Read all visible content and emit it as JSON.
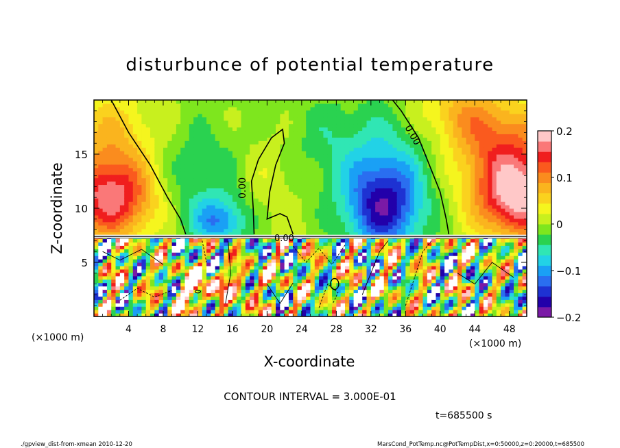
{
  "chart_data": {
    "type": "heatmap",
    "title": "disturbunce of potential temperature",
    "xlabel": "X-coordinate",
    "ylabel": "Z-coordinate",
    "x_unit": "(×1000 m)",
    "y_unit": "(×1000 m)",
    "xlim": [
      0,
      50
    ],
    "ylim": [
      0,
      20
    ],
    "x_ticks": [
      4,
      8,
      12,
      16,
      20,
      24,
      28,
      32,
      36,
      40,
      44,
      48
    ],
    "y_ticks": [
      5,
      10,
      15
    ],
    "colorbar": {
      "min": -0.2,
      "max": 0.2,
      "tick_values": [
        0.2,
        0.1,
        0,
        -0.1,
        -0.2
      ],
      "tick_labels": [
        "0.2",
        "0.1",
        "0",
        "−0.1",
        "−0.2"
      ],
      "colors": [
        "#7a1aa6",
        "#2200aa",
        "#1e32d2",
        "#2a6ef0",
        "#1aa0f5",
        "#22d2e6",
        "#30e6b4",
        "#2ad250",
        "#7ee61e",
        "#c8f01e",
        "#f5f51e",
        "#fad21e",
        "#fab41e",
        "#fa8c1e",
        "#fa5a1e",
        "#f01e1e",
        "#fa7878",
        "#ffc8c8"
      ]
    },
    "contour_label": "0.00",
    "contour_interval": "CONTOUR INTERVAL = 3.000E-01",
    "time_label": "t=685500 s"
  },
  "footer": {
    "left": "./gpview_dist-from-xmean  2010-12-20",
    "right": "MarsCond_PotTemp.nc@PotTempDist,x=0:50000,z=0:20000,t=685500"
  }
}
